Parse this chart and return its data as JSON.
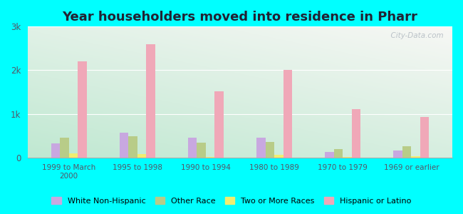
{
  "title": "Year householders moved into residence in Pharr",
  "categories": [
    "1999 to March\n2000",
    "1995 to 1998",
    "1990 to 1994",
    "1980 to 1989",
    "1970 to 1979",
    "1969 or earlier"
  ],
  "series": {
    "White Non-Hispanic": [
      330,
      570,
      450,
      450,
      130,
      155
    ],
    "Other Race": [
      450,
      490,
      340,
      360,
      185,
      255
    ],
    "Two or More Races": [
      90,
      70,
      15,
      55,
      15,
      25
    ],
    "Hispanic or Latino": [
      2200,
      2600,
      1520,
      2000,
      1100,
      920
    ]
  },
  "colors": {
    "White Non-Hispanic": "#c8a8e0",
    "Other Race": "#b8cc88",
    "Two or More Races": "#f0ee70",
    "Hispanic or Latino": "#f0a8b8"
  },
  "ylim": [
    0,
    3000
  ],
  "yticks": [
    0,
    1000,
    2000,
    3000
  ],
  "ytick_labels": [
    "0",
    "1k",
    "2k",
    "3k"
  ],
  "background_color": "#00ffff",
  "watermark": "  City-Data.com",
  "bar_width": 0.13,
  "title_fontsize": 13,
  "grid_color": "#ccddcc"
}
